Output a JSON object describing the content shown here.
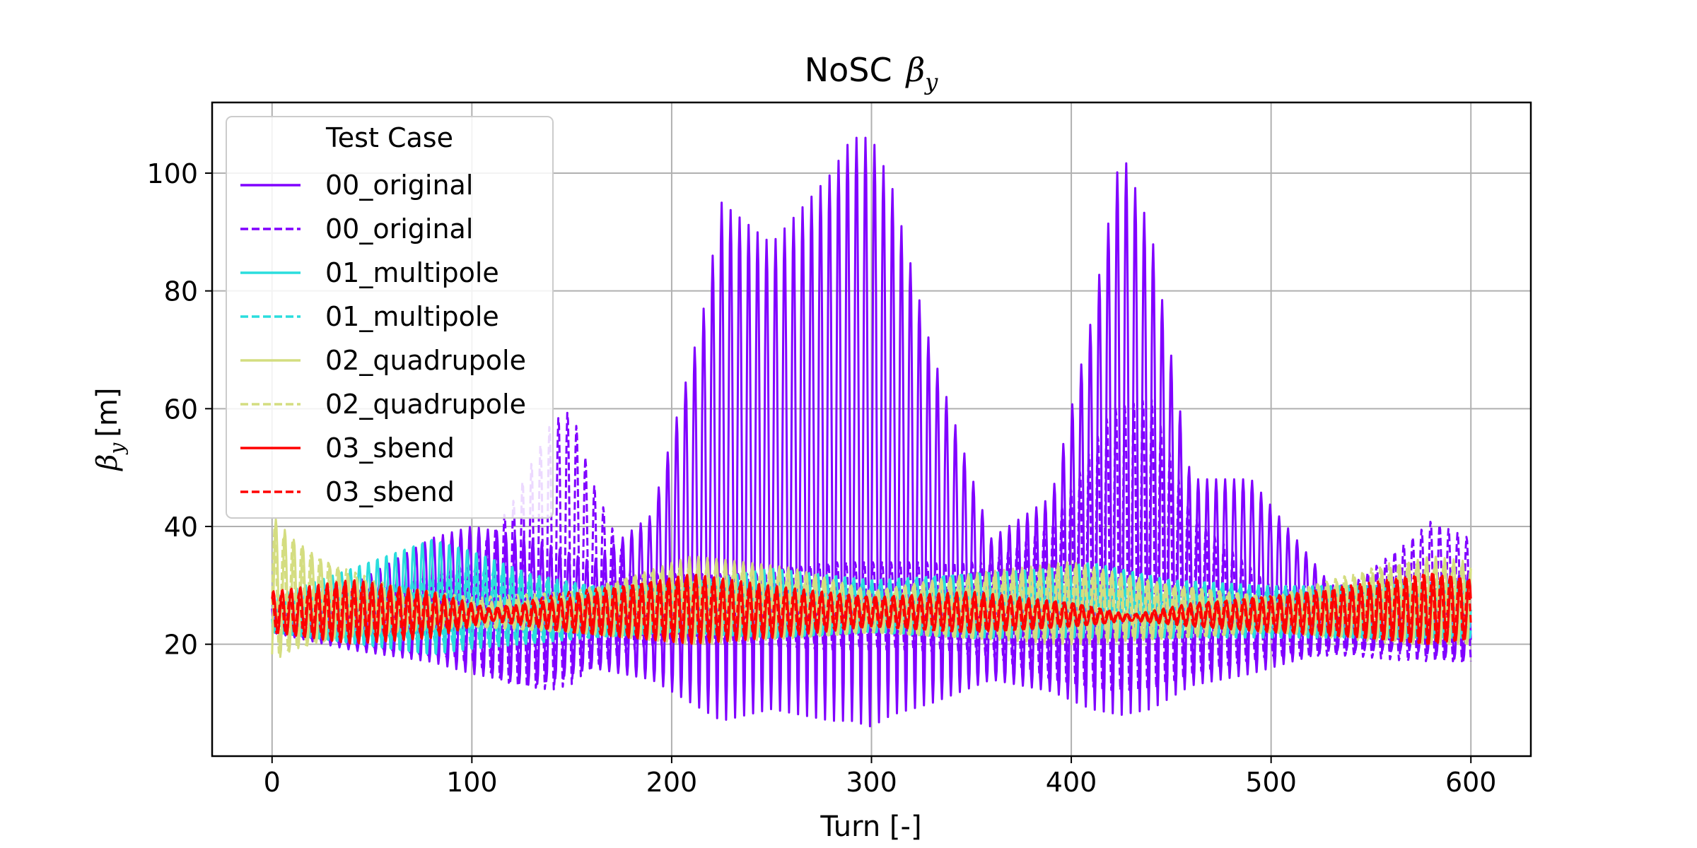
{
  "chart_data": {
    "type": "line",
    "title_prefix": "NoSC",
    "title_symbol": "β",
    "title_subscript": "y",
    "xlabel": "Turn [-]",
    "ylabel_symbol": "β",
    "ylabel_subscript": "y",
    "ylabel_unit": "[m]",
    "xlim": [
      -30,
      630
    ],
    "ylim": [
      1,
      112
    ],
    "xticks": [
      0,
      100,
      200,
      300,
      400,
      500,
      600
    ],
    "yticks": [
      20,
      40,
      60,
      80,
      100
    ],
    "grid": true,
    "legend": {
      "title": "Test Case",
      "placement": "upper-left"
    },
    "x_range": [
      0,
      600
    ],
    "series": [
      {
        "name": "00_original",
        "style": "solid",
        "color": "#8000ff",
        "oscillation_period_turns": 4.5,
        "envelope": [
          [
            0,
            27,
            22
          ],
          [
            40,
            30,
            19
          ],
          [
            80,
            38,
            17
          ],
          [
            100,
            40,
            15
          ],
          [
            130,
            38,
            13
          ],
          [
            160,
            34,
            16
          ],
          [
            190,
            42,
            14
          ],
          [
            215,
            75,
            9
          ],
          [
            225,
            95,
            7
          ],
          [
            250,
            88,
            9
          ],
          [
            280,
            100,
            7
          ],
          [
            290,
            106,
            7
          ],
          [
            300,
            106,
            6
          ],
          [
            310,
            98,
            8
          ],
          [
            330,
            70,
            10
          ],
          [
            360,
            38,
            14
          ],
          [
            390,
            45,
            12
          ],
          [
            410,
            75,
            9
          ],
          [
            425,
            104,
            8
          ],
          [
            440,
            90,
            9
          ],
          [
            460,
            48,
            13
          ],
          [
            490,
            48,
            15
          ],
          [
            530,
            30,
            19
          ],
          [
            570,
            30,
            19
          ],
          [
            600,
            32,
            17
          ]
        ]
      },
      {
        "name": "00_original",
        "style": "dashed",
        "color": "#8000ff",
        "oscillation_period_turns": 4.5,
        "envelope": [
          [
            0,
            27,
            22
          ],
          [
            60,
            30,
            19
          ],
          [
            100,
            34,
            17
          ],
          [
            120,
            44,
            13
          ],
          [
            140,
            58,
            12
          ],
          [
            150,
            60,
            13
          ],
          [
            160,
            48,
            16
          ],
          [
            180,
            32,
            19
          ],
          [
            200,
            32,
            20
          ],
          [
            240,
            32,
            20
          ],
          [
            280,
            34,
            19
          ],
          [
            320,
            34,
            19
          ],
          [
            360,
            34,
            18
          ],
          [
            390,
            40,
            14
          ],
          [
            420,
            60,
            12
          ],
          [
            440,
            62,
            12
          ],
          [
            460,
            42,
            15
          ],
          [
            500,
            30,
            18
          ],
          [
            540,
            30,
            18
          ],
          [
            570,
            38,
            17
          ],
          [
            580,
            41,
            17
          ],
          [
            600,
            38,
            17
          ]
        ]
      },
      {
        "name": "01_multipole",
        "style": "solid",
        "color": "#2adddd",
        "oscillation_period_turns": 4.5,
        "envelope": [
          [
            0,
            28,
            22
          ],
          [
            40,
            33,
            20
          ],
          [
            80,
            38,
            18
          ],
          [
            100,
            36,
            19
          ],
          [
            130,
            32,
            20
          ],
          [
            160,
            30,
            21
          ],
          [
            200,
            30,
            22
          ],
          [
            250,
            33,
            21
          ],
          [
            300,
            31,
            22
          ],
          [
            350,
            32,
            21
          ],
          [
            390,
            33,
            21
          ],
          [
            410,
            34,
            21
          ],
          [
            450,
            31,
            21
          ],
          [
            500,
            30,
            21
          ],
          [
            550,
            30,
            21
          ],
          [
            600,
            31,
            21
          ]
        ]
      },
      {
        "name": "01_multipole",
        "style": "dashed",
        "color": "#2adddd",
        "oscillation_period_turns": 4.5,
        "envelope": [
          [
            0,
            27,
            23
          ],
          [
            60,
            30,
            21
          ],
          [
            100,
            33,
            20
          ],
          [
            150,
            30,
            21
          ],
          [
            200,
            30,
            22
          ],
          [
            250,
            32,
            21
          ],
          [
            300,
            30,
            22
          ],
          [
            350,
            32,
            21
          ],
          [
            410,
            33,
            21
          ],
          [
            450,
            30,
            21
          ],
          [
            500,
            29,
            22
          ],
          [
            600,
            30,
            21
          ]
        ]
      },
      {
        "name": "02_quadrupole",
        "style": "solid",
        "color": "#d4dd80",
        "oscillation_period_turns": 4.5,
        "envelope": [
          [
            0,
            42,
            17
          ],
          [
            10,
            38,
            19
          ],
          [
            30,
            33,
            21
          ],
          [
            60,
            29,
            22
          ],
          [
            100,
            27,
            23
          ],
          [
            150,
            28,
            22
          ],
          [
            210,
            35,
            20
          ],
          [
            260,
            33,
            21
          ],
          [
            300,
            29,
            22
          ],
          [
            350,
            32,
            21
          ],
          [
            400,
            34,
            20
          ],
          [
            450,
            30,
            21
          ],
          [
            500,
            28,
            22
          ],
          [
            550,
            32,
            21
          ],
          [
            580,
            35,
            20
          ],
          [
            600,
            34,
            20
          ]
        ]
      },
      {
        "name": "02_quadrupole",
        "style": "dashed",
        "color": "#d4dd80",
        "oscillation_period_turns": 4.5,
        "envelope": [
          [
            0,
            40,
            18
          ],
          [
            20,
            35,
            20
          ],
          [
            60,
            30,
            22
          ],
          [
            100,
            28,
            23
          ],
          [
            150,
            29,
            22
          ],
          [
            200,
            33,
            21
          ],
          [
            260,
            32,
            21
          ],
          [
            300,
            29,
            22
          ],
          [
            350,
            31,
            21
          ],
          [
            400,
            33,
            21
          ],
          [
            450,
            30,
            21
          ],
          [
            500,
            28,
            22
          ],
          [
            560,
            34,
            20
          ],
          [
            600,
            33,
            20
          ]
        ]
      },
      {
        "name": "03_sbend",
        "style": "solid",
        "color": "#ff0000",
        "oscillation_period_turns": 4.5,
        "envelope": [
          [
            0,
            29,
            22
          ],
          [
            40,
            31,
            20
          ],
          [
            80,
            29,
            21
          ],
          [
            110,
            26,
            24
          ],
          [
            150,
            28,
            22
          ],
          [
            210,
            32,
            20
          ],
          [
            250,
            30,
            21
          ],
          [
            300,
            28,
            23
          ],
          [
            350,
            29,
            22
          ],
          [
            400,
            27,
            23
          ],
          [
            430,
            25,
            24
          ],
          [
            460,
            27,
            23
          ],
          [
            500,
            28,
            22
          ],
          [
            550,
            30,
            21
          ],
          [
            580,
            32,
            20
          ],
          [
            600,
            31,
            21
          ]
        ]
      },
      {
        "name": "03_sbend",
        "style": "dashed",
        "color": "#ff0000",
        "oscillation_period_turns": 4.5,
        "envelope": [
          [
            0,
            28,
            22
          ],
          [
            40,
            30,
            21
          ],
          [
            80,
            28,
            22
          ],
          [
            110,
            26,
            24
          ],
          [
            150,
            29,
            22
          ],
          [
            210,
            31,
            21
          ],
          [
            250,
            29,
            22
          ],
          [
            300,
            28,
            23
          ],
          [
            350,
            28,
            22
          ],
          [
            400,
            27,
            23
          ],
          [
            430,
            25,
            24
          ],
          [
            470,
            27,
            23
          ],
          [
            520,
            29,
            22
          ],
          [
            580,
            32,
            20
          ],
          [
            600,
            31,
            21
          ]
        ]
      }
    ]
  }
}
